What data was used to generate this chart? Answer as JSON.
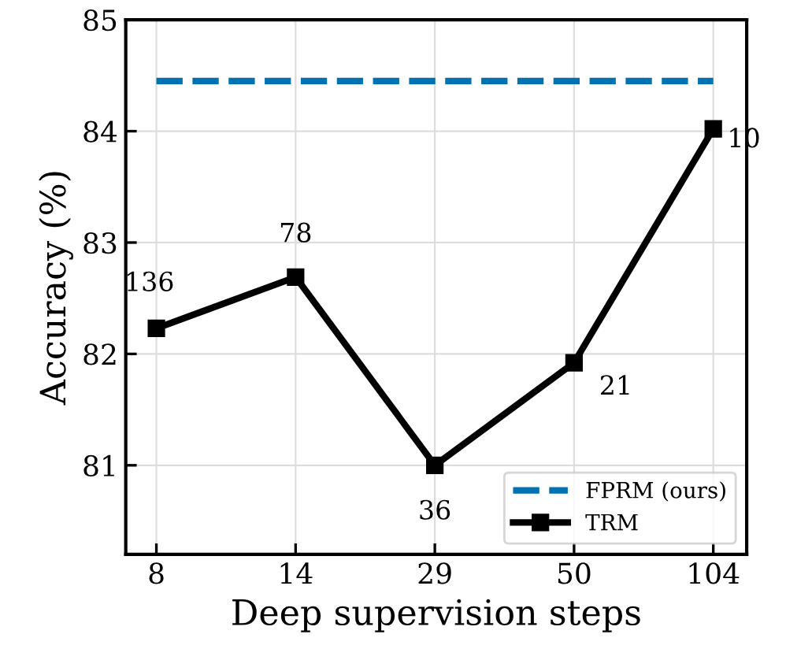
{
  "chart_data": {
    "type": "line",
    "xlabel": "Deep supervision steps",
    "ylabel": "Accuracy (%)",
    "categories": [
      "8",
      "14",
      "29",
      "50",
      "104"
    ],
    "series": [
      {
        "name": "FPRM (ours)",
        "color": "#0072b2",
        "values": [
          84.45,
          84.45,
          84.45,
          84.45,
          84.45
        ],
        "line_style": "dashed",
        "marker": "none"
      },
      {
        "name": "TRM",
        "color": "#000000",
        "values": [
          82.23,
          82.69,
          81.0,
          81.92,
          84.02
        ],
        "line_style": "solid",
        "marker": "square"
      }
    ],
    "ylim": [
      80.2,
      85
    ],
    "yticks": [
      81,
      82,
      83,
      84,
      85
    ],
    "grid": true,
    "legend": "bottom right",
    "annotations": [
      {
        "text": "136",
        "x": "8",
        "y": 82.23
      },
      {
        "text": "78",
        "x": "14",
        "y": 82.69
      },
      {
        "text": "36",
        "x": "29",
        "y": 81.0
      },
      {
        "text": "21",
        "x": "50",
        "y": 81.92
      },
      {
        "text": "10",
        "x": "104",
        "y": 84.02
      }
    ]
  }
}
